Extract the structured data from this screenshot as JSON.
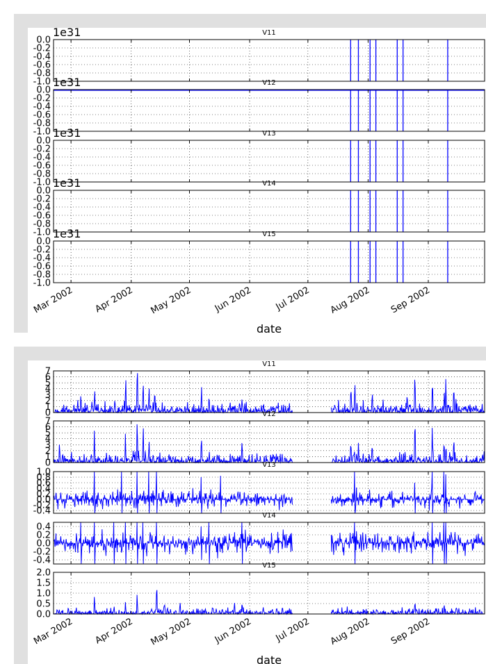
{
  "chart_data": [
    {
      "type": "line",
      "xlabel": "date",
      "x_ticks": [
        "Mar 2002",
        "Apr 2002",
        "May 2002",
        "Jun 2002",
        "Jul 2002",
        "Aug 2002",
        "Sep 2002"
      ],
      "xlim": [
        "2002-02-20",
        "2002-09-30"
      ],
      "grid": true,
      "scale_label": "1e31",
      "series": [
        {
          "name": "V11",
          "ylim": [
            -1.0,
            0.0
          ],
          "y_ticks": [
            "0.0",
            "-0.2",
            "-0.4",
            "-0.6",
            "-0.8",
            "-1.0"
          ],
          "fill_dates": [
            "2002-07-23",
            "2002-07-27",
            "2002-08-02",
            "2002-08-05",
            "2002-08-16",
            "2002-08-19",
            "2002-09-11"
          ]
        },
        {
          "name": "V12",
          "ylim": [
            -1.0,
            0.0
          ],
          "y_ticks": [
            "0.0",
            "-0.2",
            "-0.4",
            "-0.6",
            "-0.8",
            "-1.0"
          ],
          "fill_dates": [
            "2002-07-23",
            "2002-07-27",
            "2002-08-02",
            "2002-08-05",
            "2002-08-16",
            "2002-08-19",
            "2002-09-11"
          ]
        },
        {
          "name": "V13",
          "ylim": [
            -1.0,
            0.0
          ],
          "y_ticks": [
            "0.0",
            "-0.2",
            "-0.4",
            "-0.6",
            "-0.8",
            "-1.0"
          ],
          "fill_dates": [
            "2002-07-23",
            "2002-07-27",
            "2002-08-02",
            "2002-08-05",
            "2002-08-16",
            "2002-08-19",
            "2002-09-11"
          ]
        },
        {
          "name": "V14",
          "ylim": [
            -1.0,
            0.0
          ],
          "y_ticks": [
            "0.0",
            "-0.2",
            "-0.4",
            "-0.6",
            "-0.8",
            "-1.0"
          ],
          "fill_dates": [
            "2002-07-23",
            "2002-07-27",
            "2002-08-02",
            "2002-08-05",
            "2002-08-16",
            "2002-08-19",
            "2002-09-11"
          ]
        },
        {
          "name": "V15",
          "ylim": [
            -1.0,
            0.0
          ],
          "y_ticks": [
            "0.0",
            "-0.2",
            "-0.4",
            "-0.6",
            "-0.8",
            "-1.0"
          ],
          "fill_dates": [
            "2002-07-23",
            "2002-07-27",
            "2002-08-02",
            "2002-08-05",
            "2002-08-16",
            "2002-08-19",
            "2002-09-11"
          ]
        }
      ]
    },
    {
      "type": "line",
      "xlabel": "date",
      "x_ticks": [
        "Mar 2002",
        "Apr 2002",
        "May 2002",
        "Jun 2002",
        "Jul 2002",
        "Aug 2002",
        "Sep 2002"
      ],
      "xlim": [
        "2002-02-20",
        "2002-09-30"
      ],
      "grid": true,
      "gap": [
        "2002-06-23",
        "2002-07-13"
      ],
      "series": [
        {
          "name": "V11",
          "ylim": [
            0,
            7
          ],
          "y_ticks": [
            "7",
            "6",
            "5",
            "4",
            "3",
            "2",
            "1",
            "0"
          ],
          "shape": "positive",
          "typical": 0.9,
          "peaks": [
            [
              "2002-03-13",
              7.0
            ],
            [
              "2002-03-06",
              3.0
            ],
            [
              "2002-03-29",
              5.5
            ],
            [
              "2002-04-04",
              6.8
            ],
            [
              "2002-04-07",
              6.6
            ],
            [
              "2002-04-10",
              4.6
            ],
            [
              "2002-04-13",
              3.0
            ],
            [
              "2002-05-07",
              5.2
            ],
            [
              "2002-05-11",
              3.0
            ],
            [
              "2002-05-28",
              3.9
            ],
            [
              "2002-07-09",
              2.9
            ],
            [
              "2002-07-23",
              3.5
            ],
            [
              "2002-07-25",
              7.0
            ],
            [
              "2002-08-03",
              4.0
            ],
            [
              "2002-08-21",
              3.0
            ],
            [
              "2002-08-25",
              6.6
            ],
            [
              "2002-09-03",
              6.2
            ],
            [
              "2002-09-09",
              5.0
            ],
            [
              "2002-09-10",
              6.0
            ],
            [
              "2002-09-14",
              4.0
            ],
            [
              "2002-09-15",
              3.7
            ]
          ]
        },
        {
          "name": "V12",
          "ylim": [
            0,
            7
          ],
          "y_ticks": [
            "7",
            "6",
            "5",
            "4",
            "3",
            "2",
            "1",
            "0"
          ],
          "shape": "positive",
          "typical": 0.9,
          "peaks": [
            [
              "2002-02-23",
              3.0
            ],
            [
              "2002-03-13",
              7.0
            ],
            [
              "2002-03-29",
              5.5
            ],
            [
              "2002-04-04",
              6.8
            ],
            [
              "2002-04-07",
              6.5
            ],
            [
              "2002-04-10",
              5.5
            ],
            [
              "2002-05-07",
              5.2
            ],
            [
              "2002-05-11",
              3.0
            ],
            [
              "2002-05-28",
              6.8
            ],
            [
              "2002-07-09",
              2.9
            ],
            [
              "2002-07-23",
              3.5
            ],
            [
              "2002-07-27",
              3.4
            ],
            [
              "2002-08-03",
              4.0
            ],
            [
              "2002-08-25",
              6.6
            ],
            [
              "2002-09-03",
              6.2
            ],
            [
              "2002-09-09",
              5.2
            ],
            [
              "2002-09-10",
              6.0
            ],
            [
              "2002-09-14",
              4.0
            ]
          ]
        },
        {
          "name": "V13",
          "ylim": [
            -0.5,
            1.0
          ],
          "y_ticks": [
            "1.0",
            "0.8",
            "0.6",
            "0.4",
            "0.2",
            "0.0",
            "-0.2",
            "-0.4"
          ],
          "shape": "signed",
          "typical": 0.18,
          "peaks": [
            [
              "2002-03-13",
              1.0
            ],
            [
              "2002-03-27",
              1.0
            ],
            [
              "2002-04-04",
              1.0
            ],
            [
              "2002-04-10",
              1.0
            ],
            [
              "2002-04-14",
              1.0
            ],
            [
              "2002-05-07",
              0.8
            ],
            [
              "2002-05-17",
              0.85
            ],
            [
              "2002-07-09",
              0.5
            ],
            [
              "2002-07-25",
              1.0
            ],
            [
              "2002-08-25",
              0.6
            ],
            [
              "2002-09-03",
              1.0
            ],
            [
              "2002-09-09",
              1.0
            ],
            [
              "2002-09-10",
              0.9
            ]
          ]
        },
        {
          "name": "V14",
          "ylim": [
            -0.5,
            0.5
          ],
          "y_ticks": [
            "0.4",
            "0.2",
            "0.0",
            "-0.2",
            "-0.4"
          ],
          "shape": "signed",
          "typical": 0.15,
          "peaks": [
            [
              "2002-03-06",
              0.5
            ],
            [
              "2002-03-13",
              0.5
            ],
            [
              "2002-03-23",
              0.5
            ],
            [
              "2002-03-29",
              0.5
            ],
            [
              "2002-04-04",
              0.5
            ],
            [
              "2002-04-07",
              0.5
            ],
            [
              "2002-04-14",
              0.5
            ],
            [
              "2002-05-07",
              0.4
            ],
            [
              "2002-05-11",
              0.5
            ],
            [
              "2002-05-28",
              0.5
            ],
            [
              "2002-07-09",
              0.45
            ],
            [
              "2002-07-25",
              0.5
            ],
            [
              "2002-09-03",
              0.5
            ],
            [
              "2002-09-09",
              0.5
            ],
            [
              "2002-09-10",
              0.5
            ]
          ]
        },
        {
          "name": "V15",
          "ylim": [
            0,
            2.0
          ],
          "y_ticks": [
            "2.0",
            "1.5",
            "1.0",
            "0.5",
            "0.0"
          ],
          "shape": "positive",
          "typical": 0.15,
          "peaks": [
            [
              "2002-03-13",
              1.35
            ],
            [
              "2002-03-23",
              0.7
            ],
            [
              "2002-03-29",
              0.6
            ],
            [
              "2002-04-04",
              1.5
            ],
            [
              "2002-04-14",
              1.15
            ],
            [
              "2002-04-18",
              1.2
            ],
            [
              "2002-04-26",
              0.7
            ],
            [
              "2002-05-13",
              0.6
            ],
            [
              "2002-05-24",
              0.8
            ],
            [
              "2002-05-28",
              1.8
            ],
            [
              "2002-07-09",
              0.55
            ],
            [
              "2002-08-25",
              0.65
            ],
            [
              "2002-09-09",
              0.5
            ]
          ]
        }
      ]
    }
  ]
}
